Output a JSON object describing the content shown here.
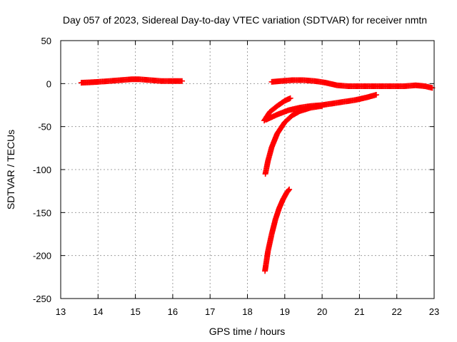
{
  "chart_data": {
    "type": "scatter",
    "title": "Day 057 of 2023, Sidereal Day-to-day VTEC variation (SDTVAR) for receiver nmtn",
    "xlabel": "GPS time / hours",
    "ylabel": "SDTVAR / TECUs",
    "xlim": [
      13,
      23
    ],
    "ylim": [
      -250,
      50
    ],
    "x_ticks": [
      "13",
      "14",
      "15",
      "16",
      "17",
      "18",
      "19",
      "20",
      "21",
      "22",
      "23"
    ],
    "y_ticks": [
      "50",
      "0",
      "-50",
      "-100",
      "-150",
      "-200",
      "-250"
    ],
    "grid": true,
    "legend": "none",
    "marker": "plus",
    "color": "#ff0000",
    "series": [
      {
        "values": [
          [
            13.55,
            1
          ],
          [
            13.8,
            1.5
          ],
          [
            14.0,
            2
          ],
          [
            14.3,
            3
          ],
          [
            14.6,
            4
          ],
          [
            14.9,
            5
          ],
          [
            15.1,
            5
          ],
          [
            15.4,
            4
          ],
          [
            15.7,
            3
          ],
          [
            16.0,
            3
          ],
          [
            16.25,
            3
          ]
        ]
      },
      {
        "values": [
          [
            18.65,
            2
          ],
          [
            18.9,
            3
          ],
          [
            19.2,
            4
          ],
          [
            19.5,
            4
          ],
          [
            19.8,
            3
          ],
          [
            20.1,
            1
          ],
          [
            20.4,
            -2
          ],
          [
            20.7,
            -3
          ],
          [
            21.0,
            -3
          ],
          [
            21.3,
            -3
          ],
          [
            21.6,
            -3
          ],
          [
            21.9,
            -3
          ],
          [
            22.2,
            -3
          ],
          [
            22.5,
            -2
          ],
          [
            22.75,
            -3
          ],
          [
            22.95,
            -5
          ]
        ]
      },
      {
        "values": [
          [
            18.5,
            -42
          ],
          [
            18.8,
            -36
          ],
          [
            19.1,
            -31
          ],
          [
            19.4,
            -28
          ],
          [
            19.7,
            -26
          ],
          [
            20.0,
            -25
          ],
          [
            20.3,
            -23
          ],
          [
            20.6,
            -21
          ],
          [
            20.9,
            -19
          ],
          [
            21.2,
            -16
          ],
          [
            21.45,
            -13
          ]
        ]
      },
      {
        "values": [
          [
            18.45,
            -43
          ],
          [
            18.6,
            -33
          ],
          [
            18.8,
            -26
          ],
          [
            19.0,
            -20
          ],
          [
            19.15,
            -17
          ]
        ]
      },
      {
        "values": [
          [
            18.48,
            -105
          ],
          [
            18.55,
            -90
          ],
          [
            18.65,
            -74
          ],
          [
            18.8,
            -58
          ],
          [
            19.0,
            -45
          ],
          [
            19.2,
            -37
          ],
          [
            19.4,
            -32
          ],
          [
            19.7,
            -28
          ],
          [
            20.0,
            -26
          ]
        ]
      },
      {
        "values": [
          [
            18.47,
            -218
          ],
          [
            18.55,
            -195
          ],
          [
            18.65,
            -175
          ],
          [
            18.75,
            -158
          ],
          [
            18.85,
            -145
          ],
          [
            18.95,
            -135
          ],
          [
            19.05,
            -127
          ],
          [
            19.12,
            -123
          ]
        ]
      }
    ]
  }
}
